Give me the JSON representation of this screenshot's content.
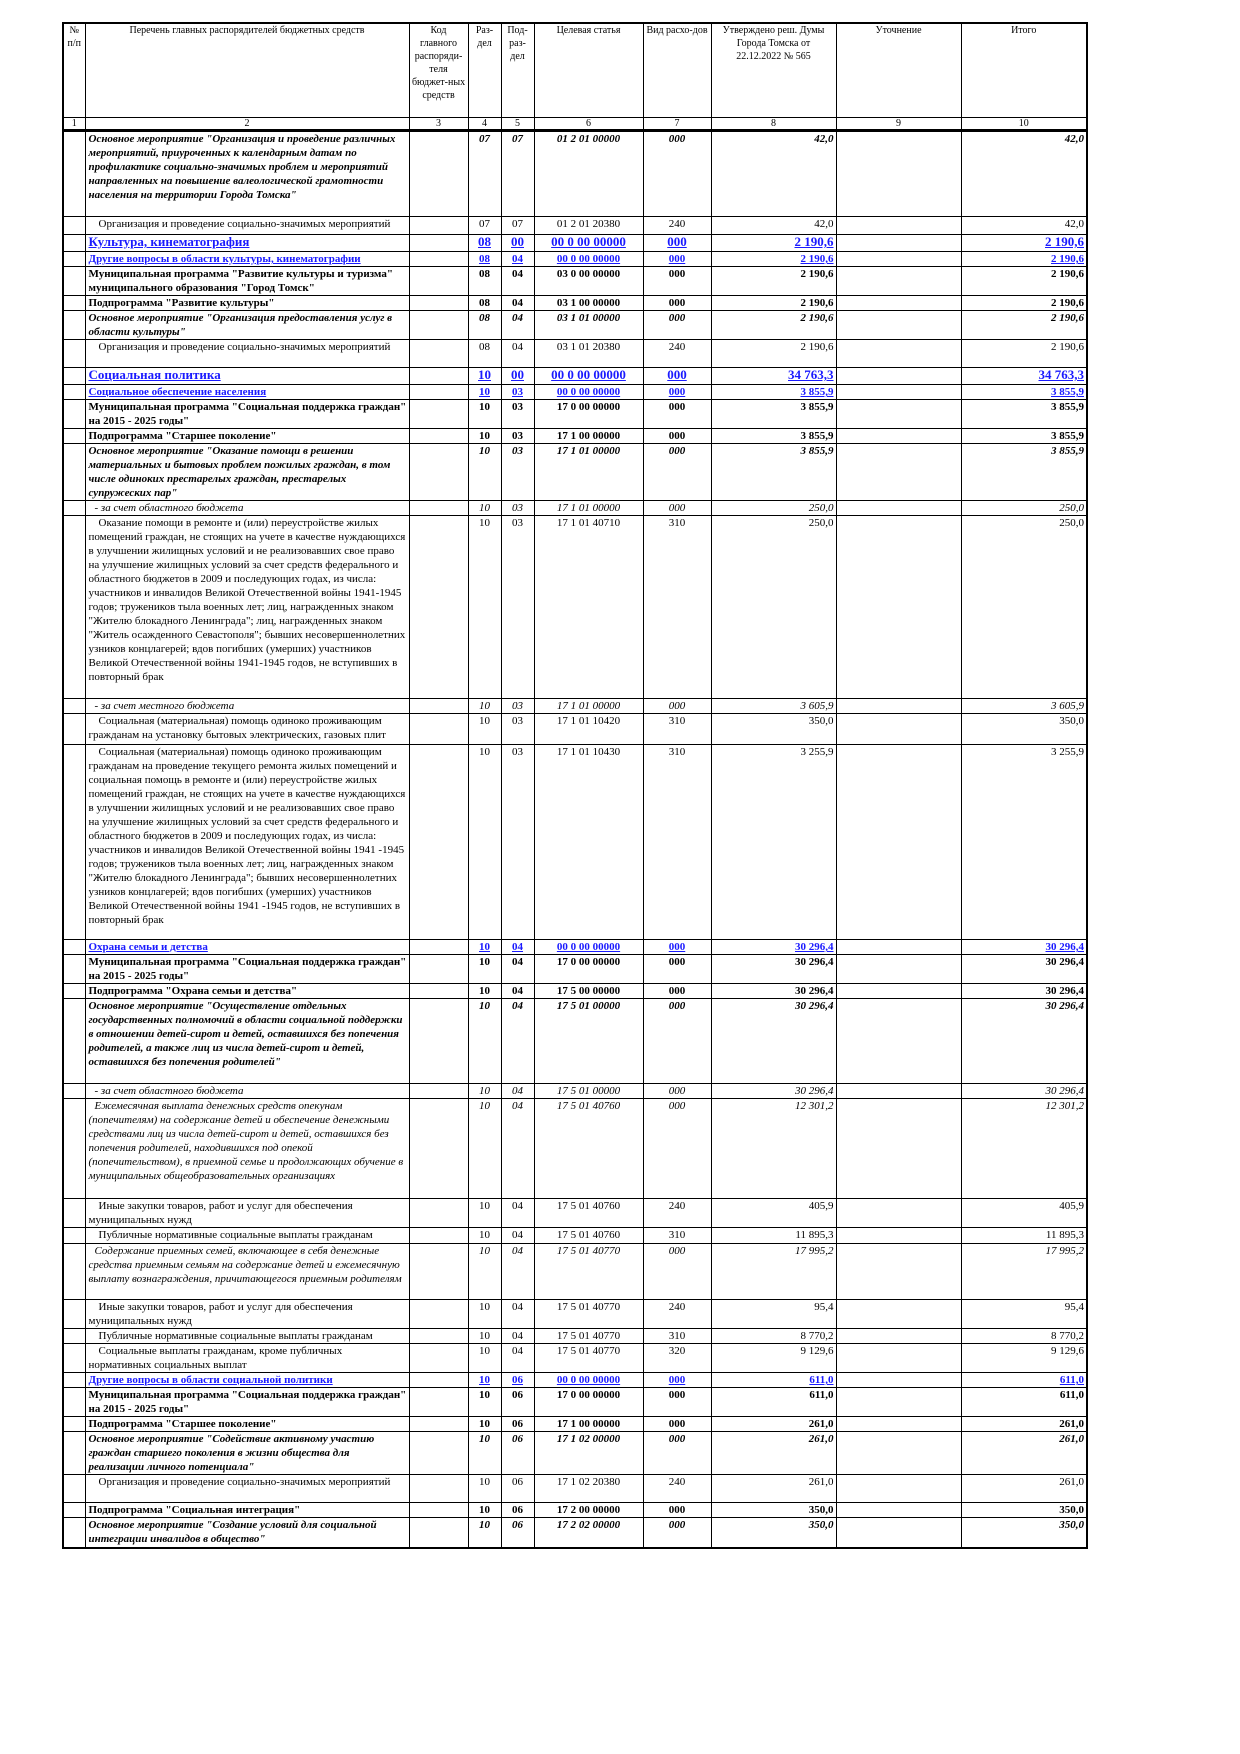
{
  "header": {
    "col1": "№ п/п",
    "col2": "Перечень главных распорядителей бюджетных средств",
    "col3": "Код главного распоряди-теля бюджет-ных средств",
    "col4": "Раз-дел",
    "col5": "Под-раз-дел",
    "col6": "Целевая статья",
    "col7": "Вид расхо-дов",
    "col8": "Утверждено реш. Думы Города Томска от 22.12.2022 № 565",
    "col9": "Уточнение",
    "col10": "Итого",
    "numbers": [
      "1",
      "2",
      "3",
      "4",
      "5",
      "6",
      "7",
      "8",
      "9",
      "10"
    ]
  },
  "rows": [
    {
      "style": "bi",
      "name": "Основное мероприятие \"Организация и проведение различных мероприятий, приуроченных к календарным датам по профилактике социально-значимых проблем и мероприятий направленных на повышение валеологической грамотности населения на территории Города Томска\"",
      "razdel": "07",
      "podrazdel": "07",
      "cs": "01 2 01 00000",
      "vr": "000",
      "approved": "42,0",
      "total": "42,0"
    },
    {
      "style": "n",
      "name": "Организация и проведение социально-значимых мероприятий",
      "razdel": "07",
      "podrazdel": "07",
      "cs": "01 2 01 20380",
      "vr": "240",
      "approved": "42,0",
      "total": "42,0"
    },
    {
      "style": "blue big",
      "name": "Культура, кинематография",
      "razdel": "08",
      "podrazdel": "00",
      "cs": "00 0 00 00000",
      "vr": "000",
      "approved": "2 190,6",
      "total": "2 190,6"
    },
    {
      "style": "blue",
      "name": "Другие вопросы в области культуры, кинематографии",
      "razdel": "08",
      "podrazdel": "04",
      "cs": "00 0 00 00000",
      "vr": "000",
      "approved": "2 190,6",
      "total": "2 190,6"
    },
    {
      "style": "b",
      "name": "Муниципальная программа \"Развитие культуры и туризма\" муниципального образования \"Город Томск\"",
      "razdel": "08",
      "podrazdel": "04",
      "cs": "03 0 00 00000",
      "vr": "000",
      "approved": "2 190,6",
      "total": "2 190,6"
    },
    {
      "style": "b",
      "name": "Подпрограмма \"Развитие культуры\"",
      "razdel": "08",
      "podrazdel": "04",
      "cs": "03 1 00 00000",
      "vr": "000",
      "approved": "2 190,6",
      "total": "2 190,6"
    },
    {
      "style": "bi",
      "name": "Основное мероприятие \"Организация предоставления услуг в области культуры\"",
      "razdel": "08",
      "podrazdel": "04",
      "cs": "03 1 01 00000",
      "vr": "000",
      "approved": "2 190,6",
      "total": "2 190,6"
    },
    {
      "style": "n",
      "name": "Организация и проведение социально-значимых мероприятий",
      "razdel": "08",
      "podrazdel": "04",
      "cs": "03 1 01 20380",
      "vr": "240",
      "approved": "2 190,6",
      "total": "2 190,6"
    },
    {
      "style": "blue big",
      "name": "Социальная политика",
      "razdel": "10",
      "podrazdel": "00",
      "cs": "00 0 00 00000",
      "vr": "000",
      "approved": "34 763,3",
      "total": "34 763,3"
    },
    {
      "style": "blue",
      "name": "Социальное обеспечение населения",
      "razdel": "10",
      "podrazdel": "03",
      "cs": "00 0 00 00000",
      "vr": "000",
      "approved": "3 855,9",
      "total": "3 855,9"
    },
    {
      "style": "b",
      "name": "Муниципальная программа \"Социальная поддержка граждан\" на 2015 - 2025 годы\"",
      "razdel": "10",
      "podrazdel": "03",
      "cs": "17 0 00 00000",
      "vr": "000",
      "approved": "3 855,9",
      "total": "3 855,9"
    },
    {
      "style": "b",
      "name": "Подпрограмма \"Старшее поколение\"",
      "razdel": "10",
      "podrazdel": "03",
      "cs": "17 1 00 00000",
      "vr": "000",
      "approved": "3 855,9",
      "total": "3 855,9"
    },
    {
      "style": "bi",
      "name": "Основное мероприятие \"Оказание помощи в решении материальных и бытовых проблем пожилых граждан, в том числе одиноких престарелых граждан, престарелых супружеских пар\"",
      "razdel": "10",
      "podrazdel": "03",
      "cs": "17 1 01 00000",
      "vr": "000",
      "approved": "3 855,9",
      "total": "3 855,9"
    },
    {
      "style": "i",
      "name": "- за счет областного бюджета",
      "razdel": "10",
      "podrazdel": "03",
      "cs": "17 1 01 00000",
      "vr": "000",
      "approved": "250,0",
      "total": "250,0"
    },
    {
      "style": "n",
      "name": "Оказание помощи в ремонте и (или) переустройстве жилых помещений граждан, не стоящих на учете в качестве нуждающихся в улучшении жилищных условий и не реализовавших свое право на улучшение жилищных условий за счет средств федерального и областного бюджетов в 2009 и последующих годах, из числа: участников и инвалидов Великой Отечественной войны 1941-1945 годов; тружеников тыла военных лет; лиц, награжденных знаком \"Жителю блокадного Ленинграда\"; лиц, награжденных знаком \"Житель осажденного Севастополя\"; бывших несовершеннолетних узников концлагерей; вдов погибших (умерших) участников Великой Отечественной войны 1941-1945 годов, не вступивших в повторный брак",
      "razdel": "10",
      "podrazdel": "03",
      "cs": "17 1 01 40710",
      "vr": "310",
      "approved": "250,0",
      "total": "250,0"
    },
    {
      "style": "i",
      "name": "- за счет местного бюджета",
      "razdel": "10",
      "podrazdel": "03",
      "cs": "17 1 01 00000",
      "vr": "000",
      "approved": "3 605,9",
      "total": "3 605,9"
    },
    {
      "style": "n",
      "name": "Социальная (материальная) помощь одиноко проживающим гражданам на установку бытовых электрических, газовых плит",
      "razdel": "10",
      "podrazdel": "03",
      "cs": "17 1 01 10420",
      "vr": "310",
      "approved": "350,0",
      "total": "350,0"
    },
    {
      "style": "n",
      "name": "Социальная (материальная) помощь одиноко проживающим гражданам на проведение текущего ремонта жилых помещений и социальная помощь в ремонте и (или) переустройстве жилых помещений граждан, не стоящих на учете в качестве нуждающихся в улучшении жилищных условий и не реализовавших свое право на улучшение жилищных условий за счет средств федерального и областного бюджетов в 2009 и последующих годах, из числа: участников и инвалидов Великой Отечественной войны 1941 -1945 годов; тружеников тыла военных лет; лиц, награжденных знаком \"Жителю блокадного Ленинграда\"; бывших несовершеннолетних узников концлагерей; вдов погибших (умерших) участников Великой Отечественной войны 1941 -1945 годов, не вступивших в повторный брак",
      "razdel": "10",
      "podrazdel": "03",
      "cs": "17 1 01 10430",
      "vr": "310",
      "approved": "3 255,9",
      "total": "3 255,9"
    },
    {
      "style": "blue",
      "name": "Охрана семьи и детства",
      "razdel": "10",
      "podrazdel": "04",
      "cs": "00 0 00 00000",
      "vr": "000",
      "approved": "30 296,4",
      "total": "30 296,4"
    },
    {
      "style": "b",
      "name": "Муниципальная программа \"Социальная поддержка граждан\" на 2015 - 2025 годы\"",
      "razdel": "10",
      "podrazdel": "04",
      "cs": "17 0 00 00000",
      "vr": "000",
      "approved": "30 296,4",
      "total": "30 296,4"
    },
    {
      "style": "b",
      "name": "Подпрограмма \"Охрана семьи и детства\"",
      "razdel": "10",
      "podrazdel": "04",
      "cs": "17 5 00 00000",
      "vr": "000",
      "approved": "30 296,4",
      "total": "30 296,4"
    },
    {
      "style": "bi",
      "name": "Основное мероприятие \"Осуществление отдельных государственных полномочий в области социальной поддержки в отношении детей-сирот и детей, оставшихся без попечения родителей, а также лиц из числа детей-сирот и детей, оставшихся без попечения родителей\"",
      "razdel": "10",
      "podrazdel": "04",
      "cs": "17 5 01 00000",
      "vr": "000",
      "approved": "30 296,4",
      "total": "30 296,4"
    },
    {
      "style": "i",
      "name": "- за счет областного бюджета",
      "razdel": "10",
      "podrazdel": "04",
      "cs": "17 5 01 00000",
      "vr": "000",
      "approved": "30 296,4",
      "total": "30 296,4"
    },
    {
      "style": "i",
      "name": "Ежемесячная выплата денежных средств опекунам (попечителям) на содержание детей и обеспечение денежными средствами лиц из числа детей-сирот и детей, оставшихся без попечения родителей, находившихся под опекой (попечительством), в приемной семье и продолжающих обучение в муниципальных общеобразовательных организациях",
      "razdel": "10",
      "podrazdel": "04",
      "cs": "17 5 01 40760",
      "vr": "000",
      "approved": "12 301,2",
      "total": "12 301,2"
    },
    {
      "style": "n",
      "name": "Иные закупки товаров, работ и услуг для обеспечения муниципальных нужд",
      "razdel": "10",
      "podrazdel": "04",
      "cs": "17 5 01 40760",
      "vr": "240",
      "approved": "405,9",
      "total": "405,9"
    },
    {
      "style": "n",
      "name": "Публичные нормативные социальные выплаты гражданам",
      "razdel": "10",
      "podrazdel": "04",
      "cs": "17 5 01 40760",
      "vr": "310",
      "approved": "11 895,3",
      "total": "11 895,3"
    },
    {
      "style": "i",
      "name": "Содержание приемных семей, включающее в себя денежные средства приемным семьям на содержание детей и ежемесячную выплату вознаграждения, причитающегося приемным родителям",
      "razdel": "10",
      "podrazdel": "04",
      "cs": "17 5 01 40770",
      "vr": "000",
      "approved": "17 995,2",
      "total": "17 995,2"
    },
    {
      "style": "n",
      "name": "Иные закупки товаров, работ и услуг для обеспечения муниципальных нужд",
      "razdel": "10",
      "podrazdel": "04",
      "cs": "17 5 01 40770",
      "vr": "240",
      "approved": "95,4",
      "total": "95,4"
    },
    {
      "style": "n",
      "name": "Публичные нормативные социальные выплаты гражданам",
      "razdel": "10",
      "podrazdel": "04",
      "cs": "17 5 01 40770",
      "vr": "310",
      "approved": "8 770,2",
      "total": "8 770,2"
    },
    {
      "style": "n",
      "name": "Социальные выплаты гражданам, кроме публичных нормативных социальных выплат",
      "razdel": "10",
      "podrazdel": "04",
      "cs": "17 5 01 40770",
      "vr": "320",
      "approved": "9 129,6",
      "total": "9 129,6"
    },
    {
      "style": "blue",
      "name": "Другие вопросы в области социальной политики",
      "razdel": "10",
      "podrazdel": "06",
      "cs": "00 0 00 00000",
      "vr": "000",
      "approved": "611,0",
      "total": "611,0"
    },
    {
      "style": "b",
      "name": "Муниципальная программа \"Социальная поддержка граждан\" на 2015 - 2025 годы\"",
      "razdel": "10",
      "podrazdel": "06",
      "cs": "17 0 00 00000",
      "vr": "000",
      "approved": "611,0",
      "total": "611,0"
    },
    {
      "style": "b",
      "name": "Подпрограмма \"Старшее поколение\"",
      "razdel": "10",
      "podrazdel": "06",
      "cs": "17 1 00 00000",
      "vr": "000",
      "approved": "261,0",
      "total": "261,0"
    },
    {
      "style": "bi",
      "name": "Основное мероприятие \"Содействие активному участию граждан старшего поколения в жизни общества для реализации личного потенциала\"",
      "razdel": "10",
      "podrazdel": "06",
      "cs": "17 1 02 00000",
      "vr": "000",
      "approved": "261,0",
      "total": "261,0"
    },
    {
      "style": "n",
      "name": "Организация и проведение социально-значимых мероприятий",
      "razdel": "10",
      "podrazdel": "06",
      "cs": "17 1 02 20380",
      "vr": "240",
      "approved": "261,0",
      "total": "261,0"
    },
    {
      "style": "b",
      "name": "Подпрограмма \"Социальная интеграция\"",
      "razdel": "10",
      "podrazdel": "06",
      "cs": "17 2 00 00000",
      "vr": "000",
      "approved": "350,0",
      "total": "350,0"
    },
    {
      "style": "bi",
      "name": "Основное мероприятие \"Создание условий для социальной интеграции инвалидов в общество\"",
      "razdel": "10",
      "podrazdel": "06",
      "cs": "17 2 02 00000",
      "vr": "000",
      "approved": "350,0",
      "total": "350,0"
    }
  ]
}
